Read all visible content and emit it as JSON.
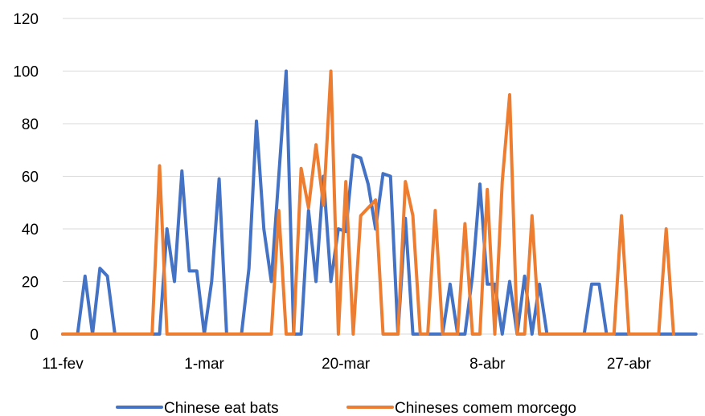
{
  "chart_data": {
    "type": "line",
    "title": "",
    "xlabel": "",
    "ylabel": "",
    "ylim": [
      0,
      120
    ],
    "yticks": [
      0,
      20,
      40,
      60,
      80,
      100,
      120
    ],
    "grid": true,
    "legend_position": "bottom",
    "x_range": [
      "11-fev",
      "5-mai"
    ],
    "x_tick_labels": [
      {
        "label": "11-fev",
        "day": 0
      },
      {
        "label": "1-mar",
        "day": 19
      },
      {
        "label": "20-mar",
        "day": 38
      },
      {
        "label": "8-abr",
        "day": 57
      },
      {
        "label": "27-abr",
        "day": 76
      }
    ],
    "series": [
      {
        "name": "Chinese eat bats",
        "color": "#4472C4",
        "points": [
          [
            0,
            0
          ],
          [
            1,
            0
          ],
          [
            2,
            0
          ],
          [
            3,
            22
          ],
          [
            4,
            0
          ],
          [
            5,
            25
          ],
          [
            6,
            22
          ],
          [
            7,
            0
          ],
          [
            8,
            0
          ],
          [
            9,
            0
          ],
          [
            10,
            0
          ],
          [
            11,
            0
          ],
          [
            12,
            0
          ],
          [
            13,
            0
          ],
          [
            14,
            40
          ],
          [
            15,
            20
          ],
          [
            16,
            62
          ],
          [
            17,
            24
          ],
          [
            18,
            24
          ],
          [
            19,
            0
          ],
          [
            20,
            20
          ],
          [
            21,
            59
          ],
          [
            22,
            0
          ],
          [
            23,
            0
          ],
          [
            24,
            0
          ],
          [
            25,
            25
          ],
          [
            26,
            81
          ],
          [
            27,
            40
          ],
          [
            28,
            20
          ],
          [
            29,
            60
          ],
          [
            30,
            100
          ],
          [
            31,
            0
          ],
          [
            32,
            0
          ],
          [
            33,
            47
          ],
          [
            34,
            20
          ],
          [
            35,
            60
          ],
          [
            36,
            20
          ],
          [
            37,
            40
          ],
          [
            38,
            39
          ],
          [
            39,
            68
          ],
          [
            40,
            67
          ],
          [
            41,
            57
          ],
          [
            42,
            40
          ],
          [
            43,
            61
          ],
          [
            44,
            60
          ],
          [
            45,
            0
          ],
          [
            46,
            44
          ],
          [
            47,
            0
          ],
          [
            48,
            0
          ],
          [
            49,
            0
          ],
          [
            50,
            0
          ],
          [
            51,
            0
          ],
          [
            52,
            19
          ],
          [
            53,
            0
          ],
          [
            54,
            0
          ],
          [
            55,
            22
          ],
          [
            56,
            57
          ],
          [
            57,
            19
          ],
          [
            58,
            19
          ],
          [
            59,
            0
          ],
          [
            60,
            20
          ],
          [
            61,
            0
          ],
          [
            62,
            22
          ],
          [
            63,
            0
          ],
          [
            64,
            19
          ],
          [
            65,
            0
          ],
          [
            66,
            0
          ],
          [
            67,
            0
          ],
          [
            68,
            0
          ],
          [
            69,
            0
          ],
          [
            70,
            0
          ],
          [
            71,
            19
          ],
          [
            72,
            19
          ],
          [
            73,
            0
          ],
          [
            74,
            0
          ],
          [
            75,
            0
          ],
          [
            76,
            0
          ],
          [
            77,
            0
          ],
          [
            78,
            0
          ],
          [
            79,
            0
          ],
          [
            80,
            0
          ],
          [
            81,
            0
          ],
          [
            82,
            0
          ],
          [
            83,
            0
          ],
          [
            84,
            0
          ],
          [
            85,
            0
          ]
        ]
      },
      {
        "name": "Chineses comem morcego",
        "color": "#ED7D31",
        "points": [
          [
            0,
            0
          ],
          [
            1,
            0
          ],
          [
            2,
            0
          ],
          [
            3,
            0
          ],
          [
            4,
            0
          ],
          [
            5,
            0
          ],
          [
            6,
            0
          ],
          [
            7,
            0
          ],
          [
            8,
            0
          ],
          [
            9,
            0
          ],
          [
            10,
            0
          ],
          [
            11,
            0
          ],
          [
            12,
            0
          ],
          [
            13,
            64
          ],
          [
            14,
            0
          ],
          [
            15,
            0
          ],
          [
            16,
            0
          ],
          [
            17,
            0
          ],
          [
            18,
            0
          ],
          [
            19,
            0
          ],
          [
            20,
            0
          ],
          [
            21,
            0
          ],
          [
            22,
            0
          ],
          [
            23,
            0
          ],
          [
            24,
            0
          ],
          [
            25,
            0
          ],
          [
            26,
            0
          ],
          [
            27,
            0
          ],
          [
            28,
            0
          ],
          [
            29,
            47
          ],
          [
            30,
            0
          ],
          [
            31,
            0
          ],
          [
            32,
            63
          ],
          [
            33,
            48
          ],
          [
            34,
            72
          ],
          [
            35,
            49
          ],
          [
            36,
            100
          ],
          [
            37,
            0
          ],
          [
            38,
            58
          ],
          [
            39,
            0
          ],
          [
            40,
            45
          ],
          [
            41,
            48
          ],
          [
            42,
            51
          ],
          [
            43,
            0
          ],
          [
            44,
            0
          ],
          [
            45,
            0
          ],
          [
            46,
            58
          ],
          [
            47,
            45
          ],
          [
            48,
            0
          ],
          [
            49,
            0
          ],
          [
            50,
            47
          ],
          [
            51,
            0
          ],
          [
            52,
            0
          ],
          [
            53,
            0
          ],
          [
            54,
            42
          ],
          [
            55,
            0
          ],
          [
            56,
            0
          ],
          [
            57,
            55
          ],
          [
            58,
            0
          ],
          [
            59,
            58
          ],
          [
            60,
            91
          ],
          [
            61,
            0
          ],
          [
            62,
            0
          ],
          [
            63,
            45
          ],
          [
            64,
            0
          ],
          [
            65,
            0
          ],
          [
            66,
            0
          ],
          [
            67,
            0
          ],
          [
            68,
            0
          ],
          [
            69,
            0
          ],
          [
            70,
            0
          ],
          [
            71,
            0
          ],
          [
            72,
            0
          ],
          [
            73,
            0
          ],
          [
            74,
            0
          ],
          [
            75,
            45
          ],
          [
            76,
            0
          ],
          [
            77,
            0
          ],
          [
            78,
            0
          ],
          [
            79,
            0
          ],
          [
            80,
            0
          ],
          [
            81,
            40
          ],
          [
            82,
            0
          ]
        ]
      }
    ]
  }
}
